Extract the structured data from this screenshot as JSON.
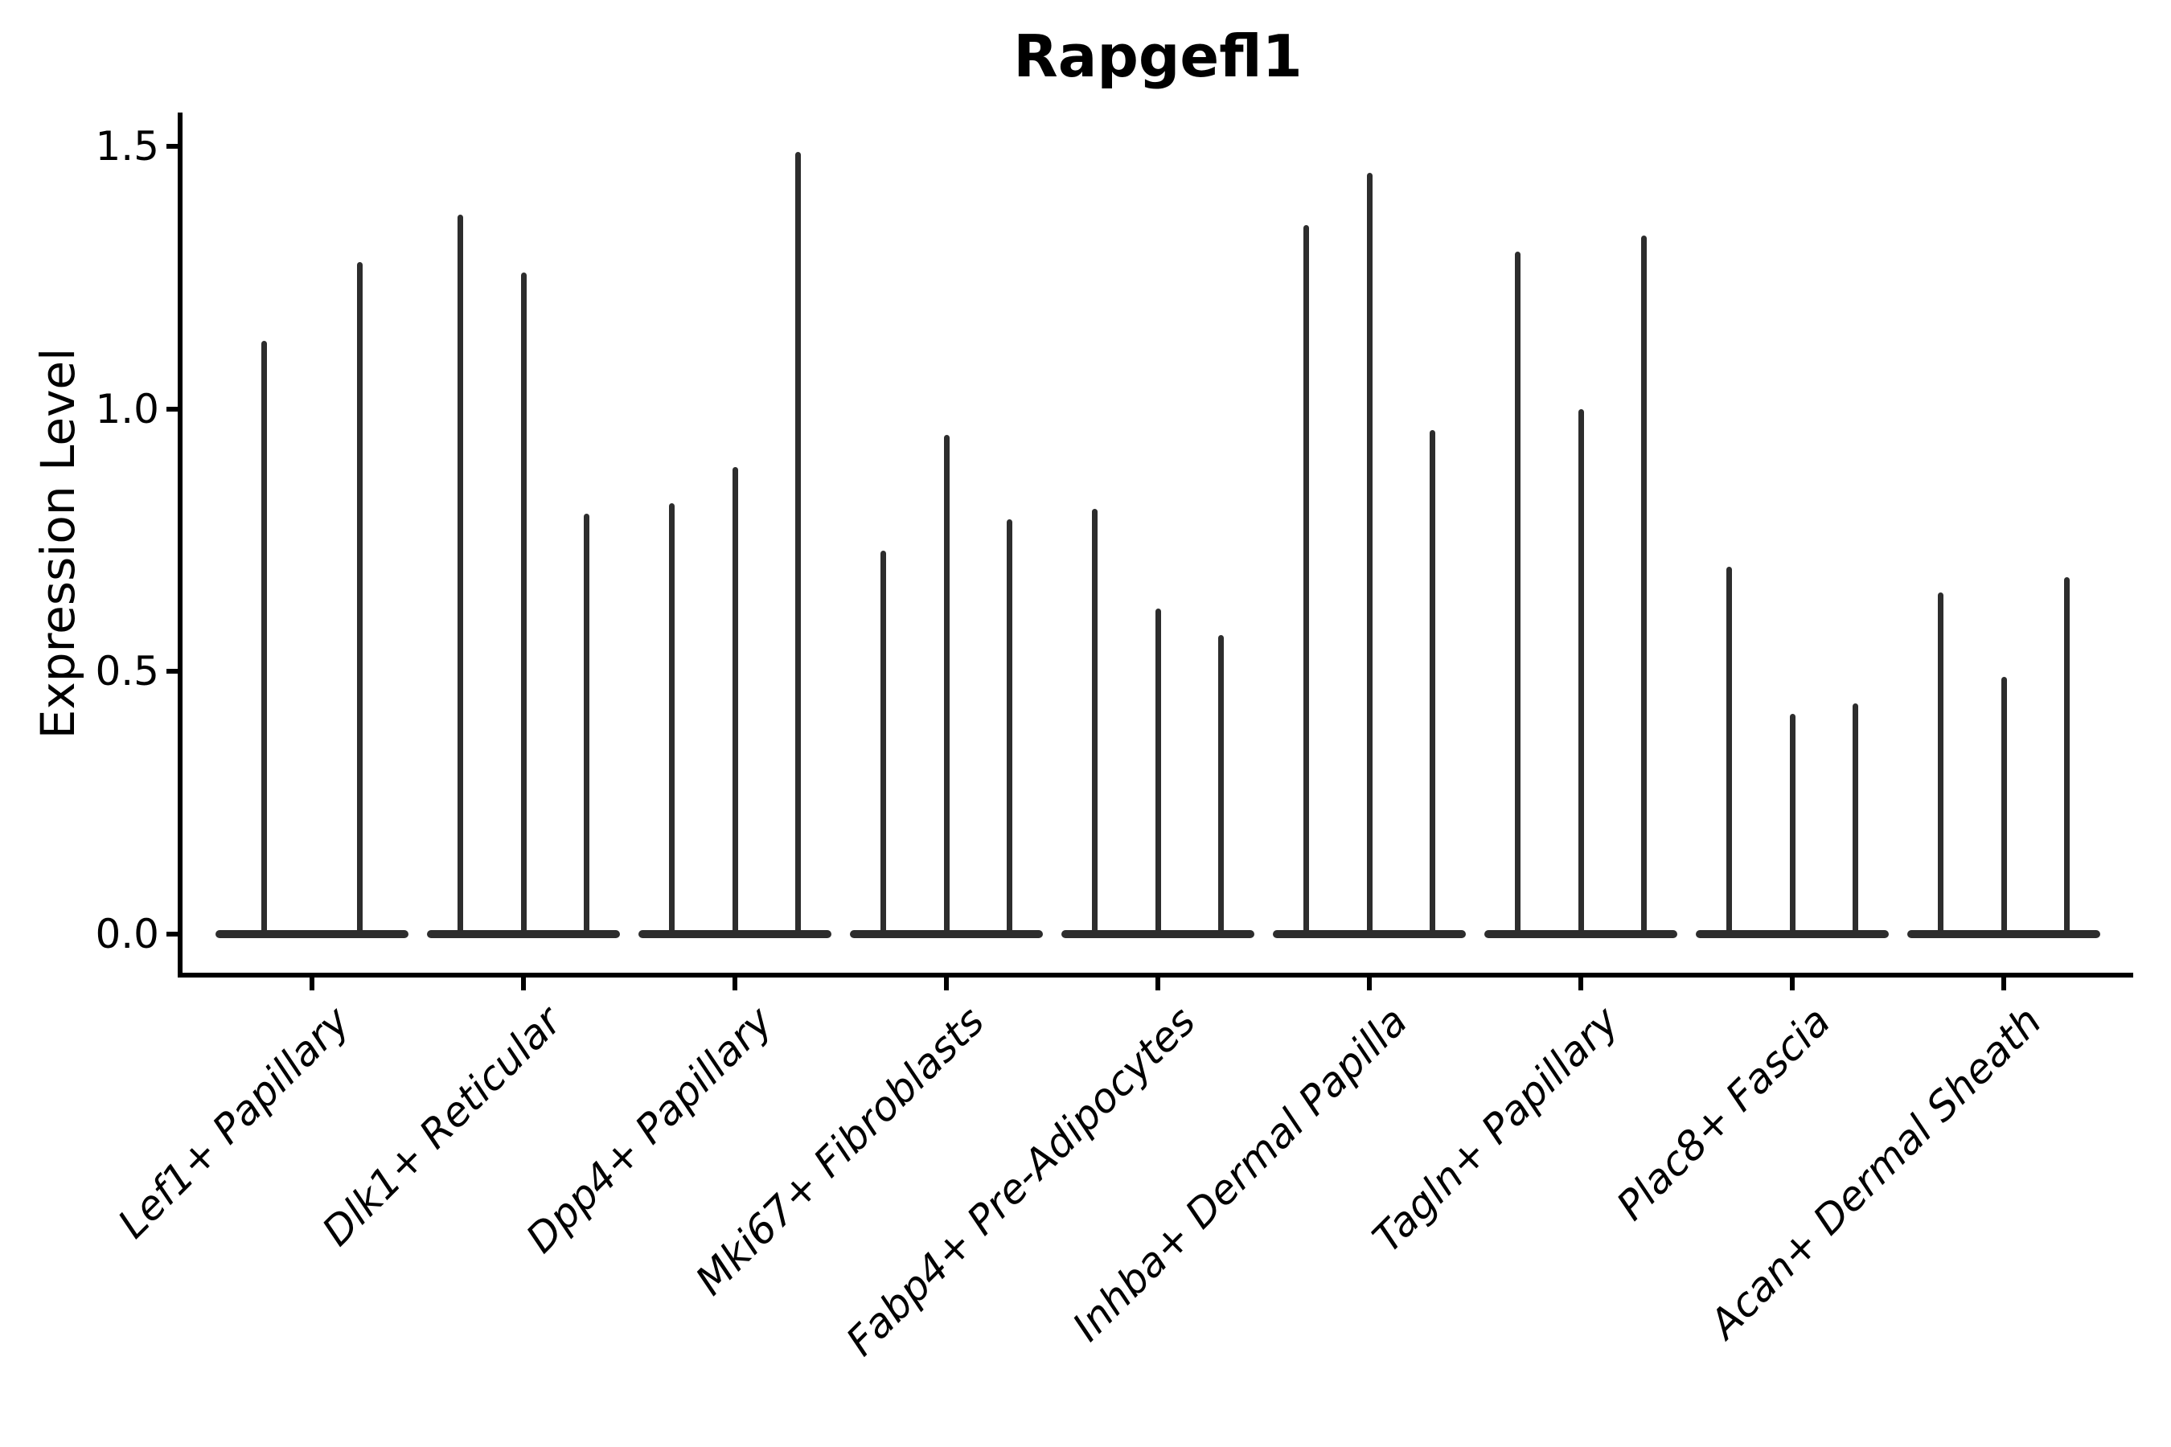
{
  "chart_data": {
    "type": "violin",
    "title": "Rapgefl1",
    "ylabel": "Expression Level",
    "xlabel": "",
    "ylim": [
      -0.07,
      1.57
    ],
    "yticks": [
      0.0,
      0.5,
      1.0,
      1.5
    ],
    "ytick_labels": [
      "0.0",
      "0.5",
      "1.0",
      "1.5"
    ],
    "grid": false,
    "legend": "none",
    "violin_color": "#2d2d2d",
    "axis_color": "#000000",
    "background_color": "#ffffff",
    "mark_note": "Sparse single-cell expression violins: each violin collapses to a flat bar of zero-density at y=0 with a thin spike rising to its maximum expression value.",
    "categories": [
      {
        "label": "Lef1+ Papillary",
        "violins": [
          {
            "offset": -0.225,
            "peak": 1.13
          },
          {
            "offset": 0.225,
            "peak": 1.28
          }
        ]
      },
      {
        "label": "Dlk1+ Reticular",
        "violins": [
          {
            "offset": -0.3,
            "peak": 1.37
          },
          {
            "offset": 0,
            "peak": 1.26
          },
          {
            "offset": 0.3,
            "peak": 0.8
          }
        ]
      },
      {
        "label": "Dpp4+ Papillary",
        "violins": [
          {
            "offset": -0.3,
            "peak": 0.82
          },
          {
            "offset": 0,
            "peak": 0.89
          },
          {
            "offset": 0.3,
            "peak": 1.49
          }
        ]
      },
      {
        "label": "Mki67+ Fibroblasts",
        "violins": [
          {
            "offset": -0.3,
            "peak": 0.73
          },
          {
            "offset": 0,
            "peak": 0.95
          },
          {
            "offset": 0.3,
            "peak": 0.79
          }
        ]
      },
      {
        "label": "Fabp4+ Pre-Adipocytes",
        "violins": [
          {
            "offset": -0.3,
            "peak": 0.81
          },
          {
            "offset": 0,
            "peak": 0.62
          },
          {
            "offset": 0.3,
            "peak": 0.57
          }
        ]
      },
      {
        "label": "Inhba+ Dermal Papilla",
        "violins": [
          {
            "offset": -0.3,
            "peak": 1.35
          },
          {
            "offset": 0,
            "peak": 1.45
          },
          {
            "offset": 0.3,
            "peak": 0.96
          }
        ]
      },
      {
        "label": "Tagln+ Papillary",
        "violins": [
          {
            "offset": -0.3,
            "peak": 1.3
          },
          {
            "offset": 0,
            "peak": 1.0
          },
          {
            "offset": 0.3,
            "peak": 1.33
          }
        ]
      },
      {
        "label": "Plac8+ Fascia",
        "violins": [
          {
            "offset": -0.3,
            "peak": 0.7
          },
          {
            "offset": 0,
            "peak": 0.42
          },
          {
            "offset": 0.3,
            "peak": 0.44
          }
        ]
      },
      {
        "label": "Acan+ Dermal Sheath",
        "violins": [
          {
            "offset": -0.3,
            "peak": 0.65
          },
          {
            "offset": 0,
            "peak": 0.49
          },
          {
            "offset": 0.3,
            "peak": 0.68
          }
        ]
      }
    ]
  }
}
